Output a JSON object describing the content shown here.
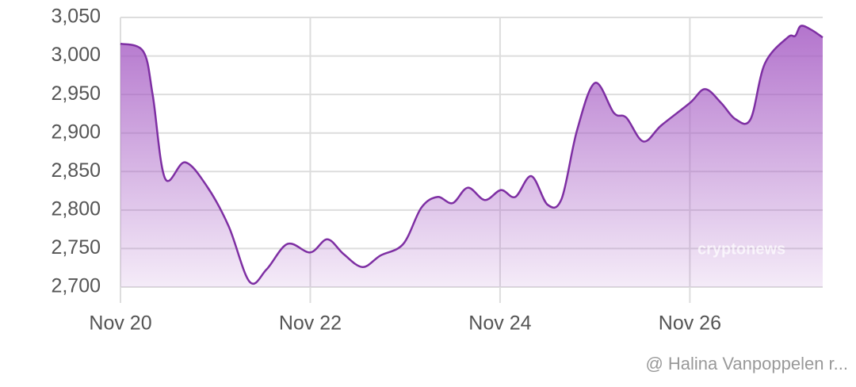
{
  "chart_data": {
    "type": "area",
    "x": [
      20.0,
      20.24,
      20.34,
      20.47,
      20.68,
      20.91,
      21.14,
      21.36,
      21.54,
      21.76,
      22.0,
      22.18,
      22.35,
      22.55,
      22.74,
      22.98,
      23.17,
      23.34,
      23.5,
      23.66,
      23.84,
      24.01,
      24.16,
      24.33,
      24.5,
      24.65,
      24.81,
      25.0,
      25.2,
      25.33,
      25.51,
      25.7,
      26.0,
      26.16,
      26.33,
      26.48,
      26.64,
      26.79,
      27.03,
      27.11,
      27.17,
      27.28,
      27.4
    ],
    "values": [
      3016,
      3006,
      2949,
      2841,
      2862,
      2831,
      2779,
      2707,
      2723,
      2756,
      2745,
      2762,
      2743,
      2726,
      2741,
      2756,
      2803,
      2817,
      2809,
      2829,
      2813,
      2826,
      2817,
      2844,
      2807,
      2815,
      2903,
      2965,
      2926,
      2920,
      2889,
      2910,
      2939,
      2957,
      2939,
      2918,
      2918,
      2990,
      3024,
      3026,
      3039,
      3034,
      3024
    ],
    "color": "#7e2fa3",
    "xlim": [
      20,
      27.4
    ],
    "xticks": [
      {
        "value": 20,
        "label": "Nov 20"
      },
      {
        "value": 22,
        "label": "Nov 22"
      },
      {
        "value": 24,
        "label": "Nov 24"
      },
      {
        "value": 26,
        "label": "Nov 26"
      }
    ],
    "ylim": [
      2700,
      3050
    ],
    "yticks": [
      {
        "value": 2700,
        "label": "2,700"
      },
      {
        "value": 2750,
        "label": "2,750"
      },
      {
        "value": 2800,
        "label": "2,800"
      },
      {
        "value": 2850,
        "label": "2,850"
      },
      {
        "value": 2900,
        "label": "2,900"
      },
      {
        "value": 2950,
        "label": "2,950"
      },
      {
        "value": 3000,
        "label": "3,000"
      },
      {
        "value": 3050,
        "label": "3,050"
      }
    ],
    "grid": true,
    "watermark": "cryptonews",
    "credit": "@ Halina Vanpoppelen r..."
  }
}
